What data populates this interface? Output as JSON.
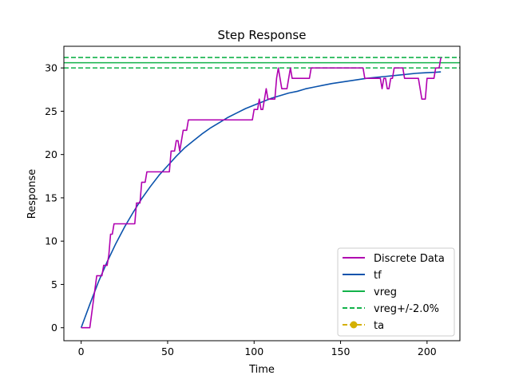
{
  "chart_data": {
    "type": "line",
    "title": "Step Response",
    "xlabel": "Time",
    "ylabel": "Response",
    "xlim": [
      -10,
      219
    ],
    "ylim": [
      -1.5,
      32.5
    ],
    "xticks": [
      0,
      50,
      100,
      150,
      200
    ],
    "yticks": [
      0,
      5,
      10,
      15,
      20,
      25,
      30
    ],
    "grid": false,
    "legend_position": "lower-right",
    "series": [
      {
        "name": "Discrete Data",
        "color": "#b000b0",
        "style": "solid",
        "x": [
          0,
          5,
          9,
          10,
          12,
          13,
          14,
          15,
          16,
          17,
          18,
          19,
          20,
          21,
          22,
          30,
          31,
          32,
          33,
          34,
          35,
          36,
          37,
          38,
          39,
          40,
          51,
          52,
          53,
          54,
          55,
          56,
          57,
          58,
          59,
          60,
          61,
          62,
          63,
          64,
          99,
          100,
          101,
          102,
          103,
          104,
          105,
          106,
          107,
          108,
          110,
          111,
          112,
          113,
          114,
          115,
          116,
          117,
          118,
          119,
          120,
          121,
          122,
          123,
          124,
          132,
          133,
          134,
          135,
          163,
          164,
          173,
          174,
          175,
          176,
          177,
          178,
          179,
          180,
          181,
          185,
          186,
          187,
          195,
          196,
          197,
          198,
          199,
          200,
          201,
          202,
          203,
          204,
          205,
          206,
          207,
          208
        ],
        "y": [
          0,
          0,
          6.0,
          6.0,
          6.0,
          7.2,
          7.2,
          7.2,
          8.4,
          10.8,
          10.8,
          12.0,
          12.0,
          12.0,
          12.0,
          12.0,
          12.0,
          14.4,
          14.4,
          14.4,
          16.8,
          16.8,
          16.8,
          18.0,
          18.0,
          18.0,
          18.0,
          20.4,
          20.4,
          20.4,
          21.6,
          21.6,
          20.4,
          21.6,
          22.8,
          22.8,
          22.8,
          24.0,
          24.0,
          24.0,
          24.0,
          25.2,
          25.2,
          25.2,
          26.4,
          25.2,
          25.2,
          26.4,
          27.6,
          26.4,
          26.4,
          26.4,
          26.4,
          28.8,
          30.0,
          28.8,
          27.6,
          27.6,
          27.6,
          27.6,
          28.8,
          30.0,
          28.8,
          28.8,
          28.8,
          28.8,
          30.0,
          30.0,
          30.0,
          30.0,
          28.8,
          28.8,
          27.6,
          28.8,
          28.8,
          27.6,
          27.6,
          28.8,
          28.8,
          30.0,
          30.0,
          30.0,
          28.8,
          28.8,
          27.6,
          26.4,
          26.4,
          26.4,
          28.8,
          28.8,
          28.8,
          28.8,
          28.8,
          30.0,
          30.0,
          30.0,
          31.2
        ]
      },
      {
        "name": "tf",
        "color": "#0b53ac",
        "style": "solid",
        "x": [
          0,
          5,
          10,
          15,
          20,
          25,
          30,
          35,
          40,
          45,
          50,
          55,
          60,
          65,
          70,
          75,
          80,
          85,
          90,
          95,
          100,
          105,
          110,
          115,
          120,
          125,
          130,
          135,
          140,
          145,
          150,
          155,
          160,
          165,
          170,
          175,
          180,
          185,
          190,
          195,
          200,
          205,
          208
        ],
        "y": [
          0,
          2.7,
          5.3,
          7.6,
          9.7,
          11.6,
          13.3,
          14.9,
          16.3,
          17.6,
          18.7,
          19.8,
          20.8,
          21.6,
          22.4,
          23.1,
          23.7,
          24.3,
          24.8,
          25.3,
          25.7,
          26.1,
          26.5,
          26.8,
          27.1,
          27.3,
          27.6,
          27.8,
          28.0,
          28.2,
          28.35,
          28.5,
          28.65,
          28.8,
          28.9,
          29.0,
          29.1,
          29.2,
          29.3,
          29.4,
          29.45,
          29.5,
          29.55
        ]
      },
      {
        "name": "vreg",
        "color": "#12b24a",
        "style": "solid",
        "x": [
          -10,
          219
        ],
        "y": [
          30.6,
          30.6
        ]
      },
      {
        "name": "vreg+/-2.0%",
        "color": "#12b24a",
        "style": "dashed",
        "x": [
          -10,
          219
        ],
        "y": [
          31.2,
          31.2
        ],
        "y_lower": 30.0
      },
      {
        "name": "ta",
        "color": "#d4b000",
        "style": "dashed-marker",
        "x": [],
        "y": []
      }
    ]
  }
}
